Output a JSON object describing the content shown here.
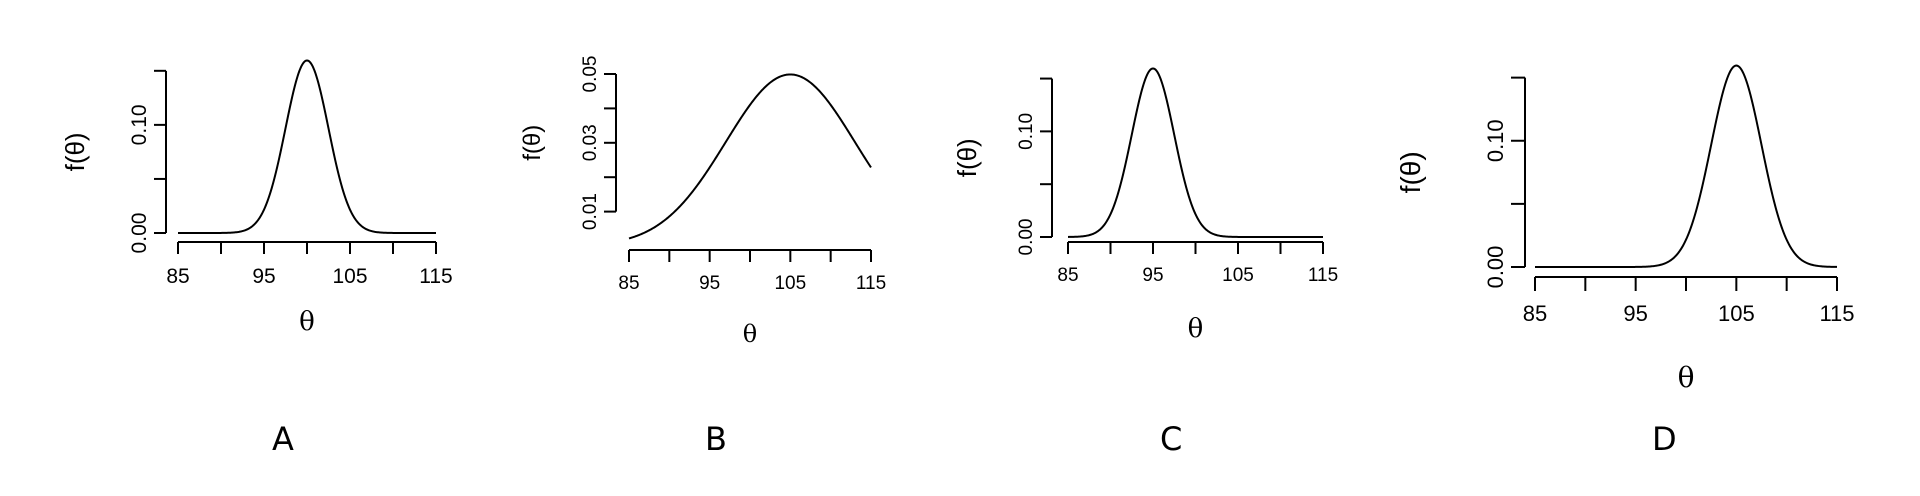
{
  "chart_data": [
    {
      "type": "line",
      "panel_label": "A",
      "xlabel": "θ",
      "ylabel": "f(θ)",
      "x_ticks": [
        85,
        90,
        95,
        100,
        105,
        110,
        115
      ],
      "x_tick_labels": [
        "85",
        "95",
        "105",
        "115"
      ],
      "y_ticks": [
        0,
        0.05,
        0.1,
        0.15
      ],
      "y_tick_labels": [
        "0.00",
        "0.10"
      ],
      "xlim": [
        85,
        115
      ],
      "ylim": [
        0,
        0.16
      ],
      "series": [
        {
          "distribution": "normal",
          "mean": 100,
          "sd": 2.5,
          "x_range": [
            85,
            115
          ]
        }
      ]
    },
    {
      "type": "line",
      "panel_label": "B",
      "xlabel": "θ",
      "ylabel": "f(θ)",
      "x_ticks": [
        85,
        90,
        95,
        100,
        105,
        110,
        115
      ],
      "x_tick_labels": [
        "85",
        "95",
        "105",
        "115"
      ],
      "y_ticks": [
        0.01,
        0.02,
        0.03,
        0.04,
        0.05
      ],
      "y_tick_labels": [
        "0.01",
        "0.03",
        "0.05"
      ],
      "xlim": [
        85,
        115
      ],
      "ylim": [
        0.0,
        0.05
      ],
      "series": [
        {
          "distribution": "normal",
          "mean": 105,
          "sd": 8,
          "x_range": [
            85,
            115
          ]
        }
      ]
    },
    {
      "type": "line",
      "panel_label": "C",
      "xlabel": "θ",
      "ylabel": "f(θ)",
      "x_ticks": [
        85,
        90,
        95,
        100,
        105,
        110,
        115
      ],
      "x_tick_labels": [
        "85",
        "95",
        "105",
        "115"
      ],
      "y_ticks": [
        0,
        0.05,
        0.1,
        0.15
      ],
      "y_tick_labels": [
        "0.00",
        "0.10"
      ],
      "xlim": [
        85,
        115
      ],
      "ylim": [
        0,
        0.16
      ],
      "series": [
        {
          "distribution": "normal",
          "mean": 95,
          "sd": 2.5,
          "x_range": [
            85,
            115
          ]
        }
      ]
    },
    {
      "type": "line",
      "panel_label": "D",
      "xlabel": "θ",
      "ylabel": "f(θ)",
      "x_ticks": [
        85,
        90,
        95,
        100,
        105,
        110,
        115
      ],
      "x_tick_labels": [
        "85",
        "95",
        "105",
        "115"
      ],
      "y_ticks": [
        0,
        0.05,
        0.1,
        0.15
      ],
      "y_tick_labels": [
        "0.00",
        "0.10"
      ],
      "xlim": [
        85,
        115
      ],
      "ylim": [
        0,
        0.16
      ],
      "series": [
        {
          "distribution": "normal",
          "mean": 105,
          "sd": 2.5,
          "x_range": [
            85,
            115
          ]
        }
      ]
    }
  ]
}
